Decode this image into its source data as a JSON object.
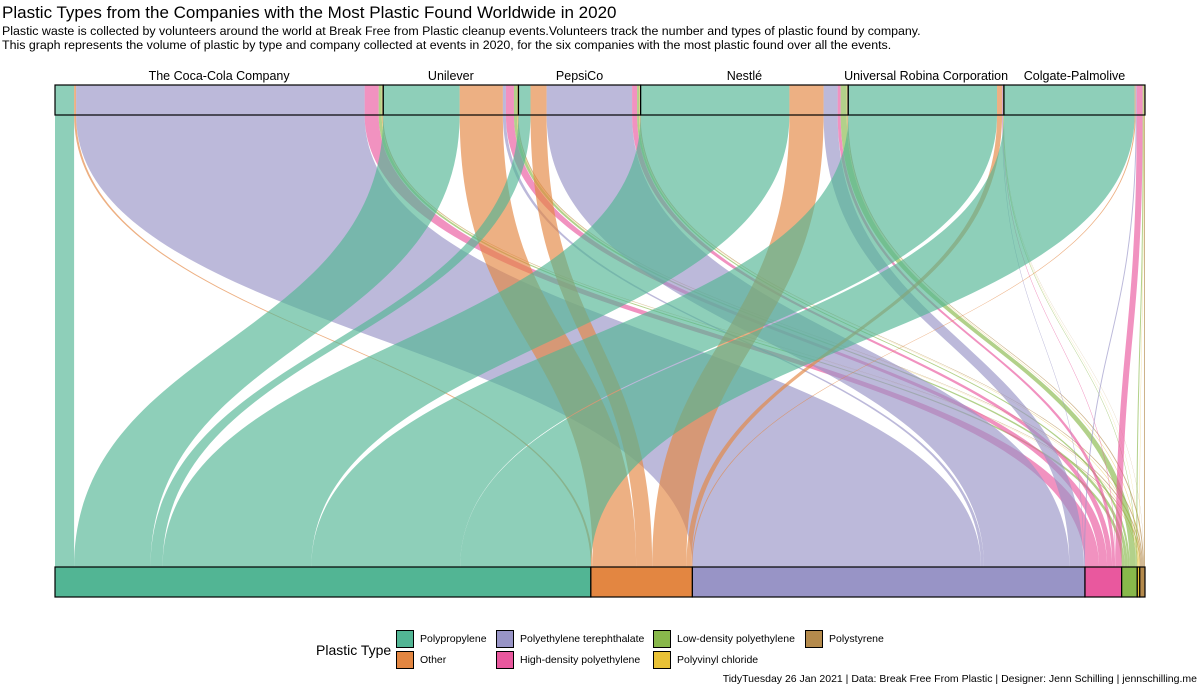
{
  "title": "Plastic Types from the Companies with the Most Plastic Found Worldwide in 2020",
  "subtitle_line1": "Plastic waste is collected by volunteers around the world at Break Free from Plastic cleanup events.Volunteers track the number and types of plastic found by company.",
  "subtitle_line2": "This graph represents the volume of plastic by type and company collected at events in 2020, for the  six companies with the most plastic found over all the events.",
  "caption": "TidyTuesday 26 Jan 2021 | Data: Break Free From Plastic | Designer: Jenn Schilling | jennschilling.me",
  "legend": {
    "title": "Plastic Type",
    "items": [
      {
        "label": "Polypropylene",
        "color": "#52b594"
      },
      {
        "label": "Other",
        "color": "#e38641"
      },
      {
        "label": "Polyethylene terephthalate",
        "color": "#9894c6"
      },
      {
        "label": "High-density polyethylene",
        "color": "#e9589e"
      },
      {
        "label": "Low-density polyethylene",
        "color": "#88b84b"
      },
      {
        "label": "Polyvinyl chloride",
        "color": "#e9c236"
      },
      {
        "label": "Polystyrene",
        "color": "#b48a4c"
      }
    ]
  },
  "chart_data": {
    "type": "alluvial",
    "companies": [
      "The Coca-Cola Company",
      "Unilever",
      "PepsiCo",
      "Nestlé",
      "Universal Robina Corporation",
      "Colgate-Palmolive"
    ],
    "plastic_types": [
      "Polypropylene",
      "Other",
      "Polyethylene terephthalate",
      "High-density polyethylene",
      "Low-density polyethylene",
      "Polyvinyl chloride",
      "Polystyrene"
    ],
    "flows": {
      "The Coca-Cola Company": {
        "Polypropylene": 19.0,
        "Other": 2.0,
        "Polyethylene terephthalate": 287.0,
        "High-density polyethylene": 14.0,
        "Low-density polyethylene": 3.0,
        "Polyvinyl chloride": 0.5,
        "Polystyrene": 1.0
      },
      "Unilever": {
        "Polypropylene": 76.0,
        "Other": 43.0,
        "Polyethylene terephthalate": 3.0,
        "High-density polyethylene": 8.0,
        "Low-density polyethylene": 3.0,
        "Polyvinyl chloride": 0.5,
        "Polystyrene": 1.0
      },
      "PepsiCo": {
        "Polypropylene": 12.0,
        "Other": 16.0,
        "Polyethylene terephthalate": 85.0,
        "High-density polyethylene": 5.0,
        "Low-density polyethylene": 2.0,
        "Polyvinyl chloride": 0.5,
        "Polystyrene": 1.0
      },
      "Nestlé": {
        "Polypropylene": 148.0,
        "Other": 34.0,
        "Polyethylene terephthalate": 14.0,
        "High-density polyethylene": 3.0,
        "Low-density polyethylene": 6.0,
        "Polyvinyl chloride": 0.5,
        "Polystyrene": 1.0
      },
      "Universal Robina Corporation": {
        "Polypropylene": 148.0,
        "Other": 5.0,
        "Polyethylene terephthalate": 0.5,
        "High-density polyethylene": 0.5,
        "Low-density polyethylene": 0.5,
        "Polyvinyl chloride": 0.2,
        "Polystyrene": 0.2
      },
      "Colgate-Palmolive": {
        "Polypropylene": 130.0,
        "Other": 1.0,
        "Polyethylene terephthalate": 1.0,
        "High-density polyethylene": 6.0,
        "Low-density polyethylene": 1.0,
        "Polyvinyl chloride": 0.3,
        "Polystyrene": 1.0
      }
    }
  }
}
